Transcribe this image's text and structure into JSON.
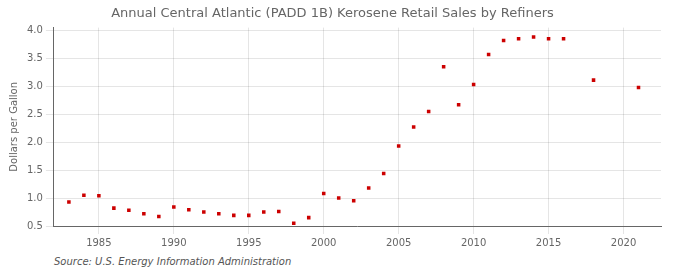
{
  "chart_data": {
    "type": "scatter",
    "title": "Annual Central Atlantic (PADD 1B) Kerosene Retail Sales by Refiners",
    "ylabel": "Dollars per Gallon",
    "annotations": [
      "Source: U.S. Energy Information Administration"
    ],
    "x": [
      1983,
      1984,
      1985,
      1986,
      1987,
      1988,
      1989,
      1990,
      1991,
      1992,
      1993,
      1994,
      1995,
      1996,
      1997,
      1998,
      1999,
      2000,
      2001,
      2002,
      2003,
      2004,
      2005,
      2006,
      2007,
      2008,
      2009,
      2010,
      2011,
      2012,
      2013,
      2014,
      2015,
      2016,
      2018,
      2021
    ],
    "values": [
      0.93,
      1.05,
      1.04,
      0.82,
      0.78,
      0.72,
      0.67,
      0.84,
      0.79,
      0.75,
      0.72,
      0.69,
      0.69,
      0.75,
      0.76,
      0.55,
      0.65,
      1.08,
      1.0,
      0.95,
      1.18,
      1.44,
      1.93,
      2.27,
      2.55,
      3.35,
      2.67,
      3.03,
      3.57,
      3.82,
      3.85,
      3.88,
      3.85,
      3.85,
      3.11,
      2.98
    ],
    "color": "#cc0000",
    "marker": "square",
    "xlim": [
      1982.0,
      2022.5
    ],
    "xticks": [
      1985,
      1990,
      1995,
      2000,
      2005,
      2010,
      2015,
      2020
    ],
    "ylim": [
      0.5,
      4.05
    ],
    "yticks": [
      0.5,
      {
        "value": 1.0,
        "label": "1.0"
      },
      1.5,
      {
        "value": 2.0,
        "label": "2.0"
      },
      2.5,
      {
        "value": 3.0,
        "label": "3.0"
      },
      3.5,
      {
        "value": 4.0,
        "label": "4.0"
      }
    ],
    "grid": true
  }
}
